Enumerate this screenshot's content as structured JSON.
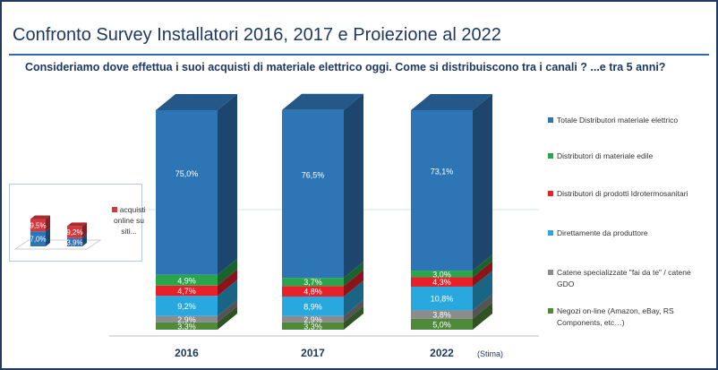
{
  "title": "Confronto Survey Installatori 2016, 2017 e Proiezione al 2022",
  "subtitle": "Consideriamo dove effettua  i suoi acquisti di materiale elettrico oggi. Come si distribuiscono  tra i canali ? ...e tra 5 anni?",
  "chart_data": [
    {
      "type": "bar",
      "stacked": true,
      "three_d": true,
      "categories": [
        "2016",
        "2017",
        "2022"
      ],
      "category_note": "(Stima)",
      "legend_position": "right",
      "series": [
        {
          "name": "Negozi on-line (Amazon, eBay, RS Components, etc…)",
          "values": [
            3.3,
            3.3,
            5.0
          ],
          "labels": [
            "3,3%",
            "3,3%",
            "5,0%"
          ],
          "color": "#4e8a3a"
        },
        {
          "name": "Catene specializzate \"fai da te\" / catene  GDO",
          "values": [
            2.9,
            2.9,
            3.8
          ],
          "labels": [
            "2,9%",
            "2,9%",
            "3,8%"
          ],
          "color": "#8c8c8c"
        },
        {
          "name": "Direttamente da produttore",
          "values": [
            9.2,
            8.9,
            10.8
          ],
          "labels": [
            "9,2%",
            "8,9%",
            "10,8%"
          ],
          "color": "#29a8e0"
        },
        {
          "name": "Distributori di prodotti Idrotermosanitari",
          "values": [
            4.7,
            4.8,
            4.3
          ],
          "labels": [
            "4,7%",
            "4,8%",
            "4,3%"
          ],
          "color": "#e8202a"
        },
        {
          "name": "Distributori di materiale edile",
          "values": [
            4.9,
            3.7,
            3.0
          ],
          "labels": [
            "4,9%",
            "3,7%",
            "3,0%"
          ],
          "color": "#2aa64a"
        },
        {
          "name": "Totale Distributori materiale elettrico",
          "values": [
            75.0,
            76.5,
            73.1
          ],
          "labels": [
            "75,0%",
            "76,5%",
            "73,1%"
          ],
          "color": "#2e75b6"
        }
      ]
    },
    {
      "type": "bar",
      "stacked": true,
      "three_d": true,
      "categories": [
        "",
        ""
      ],
      "series": [
        {
          "name": "",
          "values": [
            7.0,
            3.9
          ],
          "labels": [
            "7,0%",
            "3,9%"
          ],
          "color": "#2e75b6"
        },
        {
          "name": "acquisti online su siti...",
          "values": [
            9.5,
            9.2
          ],
          "labels": [
            "9,5%",
            "9,2%"
          ],
          "color": "#d0393e"
        }
      ]
    }
  ]
}
